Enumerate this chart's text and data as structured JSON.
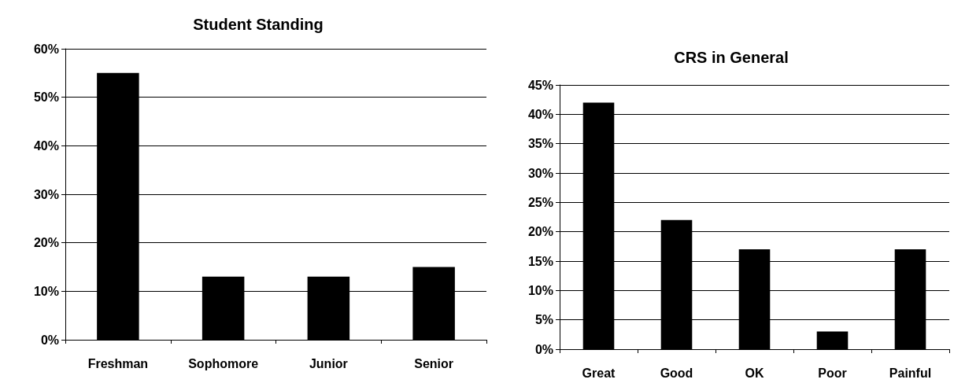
{
  "chart_data": [
    {
      "type": "bar",
      "title": "Student Standing",
      "categories": [
        "Freshman",
        "Sophomore",
        "Junior",
        "Senior"
      ],
      "values": [
        55,
        13,
        13,
        15
      ],
      "color": "#000000",
      "ylim": [
        0,
        60
      ],
      "yticks": [
        {
          "value": 0,
          "label": "0%"
        },
        {
          "value": 10,
          "label": "10%"
        },
        {
          "value": 20,
          "label": "20%"
        },
        {
          "value": 30,
          "label": "30%"
        },
        {
          "value": 40,
          "label": "40%"
        },
        {
          "value": 50,
          "label": "50%"
        },
        {
          "value": 60,
          "label": "60%"
        }
      ],
      "grid": "y"
    },
    {
      "type": "bar",
      "title": "CRS in General",
      "categories": [
        "Great",
        "Good",
        "OK",
        "Poor",
        "Painful"
      ],
      "values": [
        42,
        22,
        17,
        3,
        17
      ],
      "color": "#000000",
      "ylim": [
        0,
        45
      ],
      "yticks": [
        {
          "value": 0,
          "label": "0%"
        },
        {
          "value": 5,
          "label": "5%"
        },
        {
          "value": 10,
          "label": "10%"
        },
        {
          "value": 15,
          "label": "15%"
        },
        {
          "value": 20,
          "label": "20%"
        },
        {
          "value": 25,
          "label": "25%"
        },
        {
          "value": 30,
          "label": "30%"
        },
        {
          "value": 35,
          "label": "35%"
        },
        {
          "value": 40,
          "label": "40%"
        },
        {
          "value": 45,
          "label": "45%"
        }
      ],
      "grid": "y"
    }
  ]
}
